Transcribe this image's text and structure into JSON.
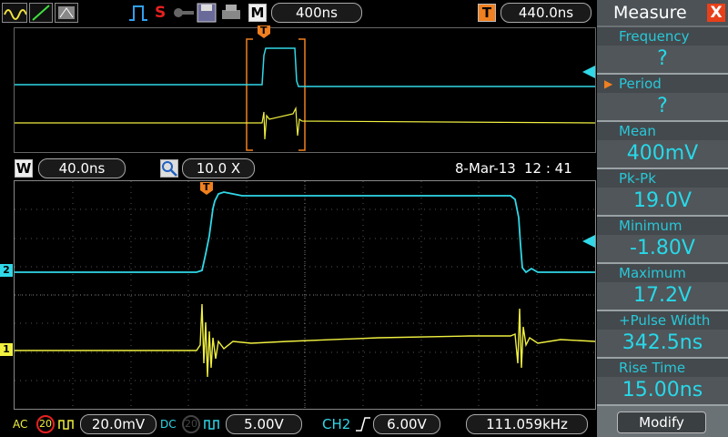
{
  "toolbar": {
    "timebase": "400ns",
    "trigger_pos": "440.0ns",
    "m_tag": "M",
    "t_tag": "T",
    "s_tag": "S"
  },
  "midbar": {
    "w_tag": "W",
    "window_time": "40.0ns",
    "zoom": "10.0 X",
    "date": "8-Mar-13",
    "time": "12 : 41"
  },
  "bottombar": {
    "ch1_coupling": "AC",
    "ch1_bw": "20",
    "ch1_scale": "20.0mV",
    "ch2_coupling": "DC",
    "ch2_bw": "20",
    "ch2_scale": "5.00V",
    "trig_source": "CH2",
    "trig_level": "6.00V",
    "frequency": "111.059kHz"
  },
  "markers": {
    "ch1": "1",
    "ch2": "2",
    "trig": "T"
  },
  "measure": {
    "title": "Measure",
    "close": "X",
    "items": [
      {
        "label": "Frequency",
        "value": "?"
      },
      {
        "label": "Period",
        "value": "?"
      },
      {
        "label": "Mean",
        "value": "400mV"
      },
      {
        "label": "Pk-Pk",
        "value": "19.0V"
      },
      {
        "label": "Minimum",
        "value": "-1.80V"
      },
      {
        "label": "Maximum",
        "value": "17.2V"
      },
      {
        "label": "+Pulse Width",
        "value": "342.5ns"
      },
      {
        "label": "Rise Time",
        "value": "15.00ns"
      }
    ],
    "modify": "Modify"
  },
  "colors": {
    "ch1": "#f0f040",
    "ch2": "#30d8e8",
    "accent": "#f08020"
  }
}
